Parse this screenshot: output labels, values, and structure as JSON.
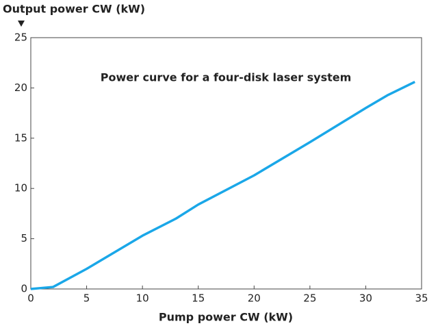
{
  "chart_data": {
    "type": "line",
    "title": "Power curve for a four-disk laser system",
    "y_label": "Output power CW (kW)",
    "x_label": "Pump power CW (kW)",
    "x": [
      0,
      2,
      5,
      10,
      13,
      15,
      20,
      25,
      30,
      32,
      34.4
    ],
    "series": [
      {
        "color": "#1aa7e8",
        "values": [
          0,
          0.2,
          2,
          5.3,
          7,
          8.4,
          11.3,
          14.6,
          18,
          19.3,
          20.6
        ]
      }
    ],
    "xlim": [
      0,
      35
    ],
    "xticks": [
      0,
      5,
      10,
      15,
      20,
      25,
      30,
      35
    ],
    "ylim": [
      0,
      25
    ],
    "yticks": [
      0,
      5,
      10,
      15,
      20,
      25
    ]
  }
}
